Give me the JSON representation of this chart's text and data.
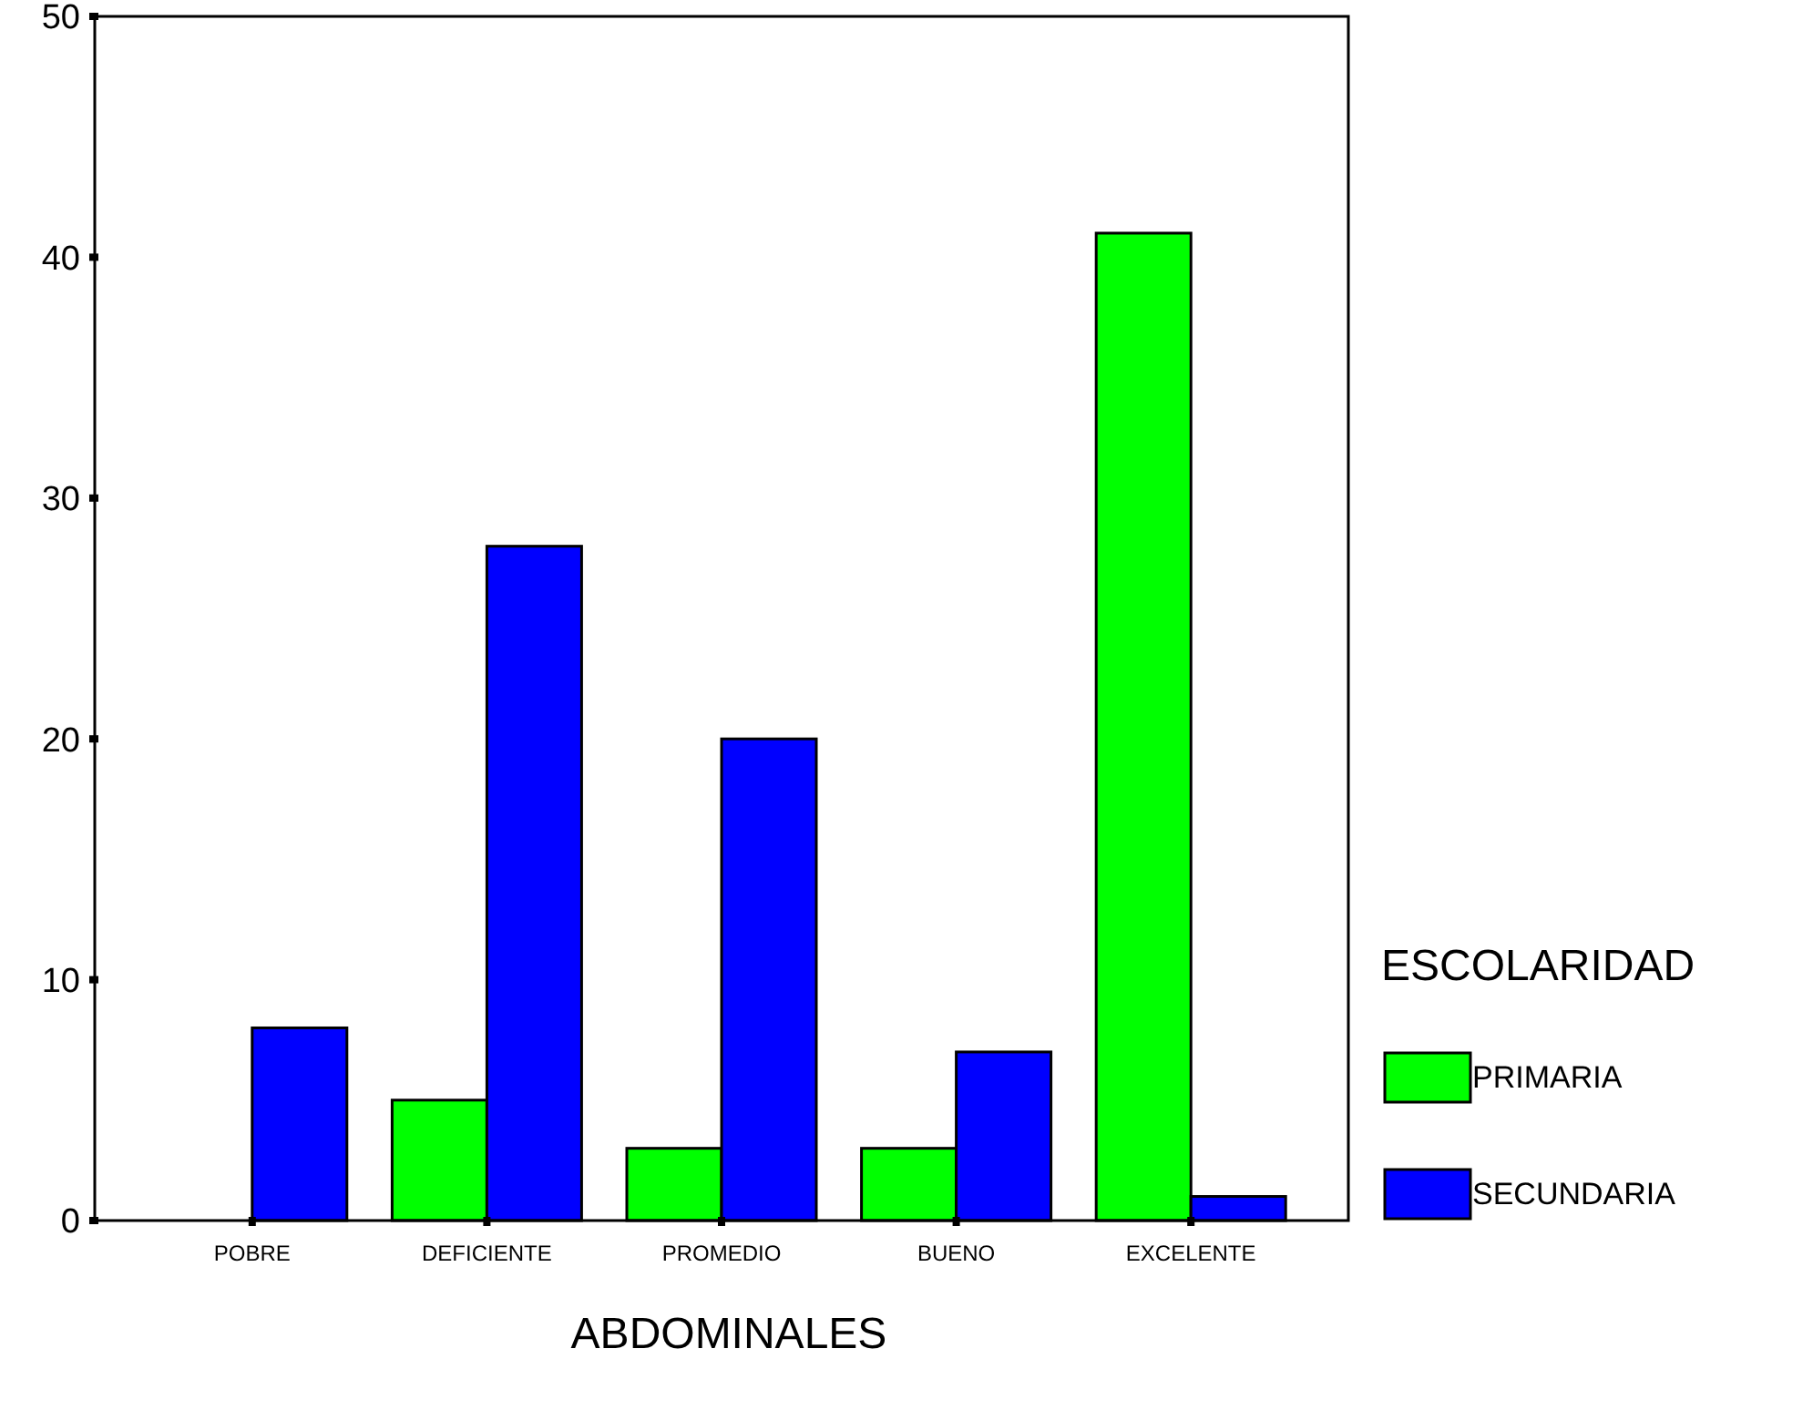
{
  "chart_data": {
    "type": "bar",
    "xlabel": "ABDOMINALES",
    "legend_title": "ESCOLARIDAD",
    "legend": "right",
    "grid": false,
    "categories": [
      "POBRE",
      "DEFICIENTE",
      "PROMEDIO",
      "BUENO",
      "EXCELENTE"
    ],
    "series": [
      {
        "name": "PRIMARIA",
        "color": "#00ff00",
        "values": [
          0,
          5,
          3,
          3,
          41
        ]
      },
      {
        "name": "SECUNDARIA",
        "color": "#0000ff",
        "values": [
          8,
          28,
          20,
          7,
          1
        ]
      }
    ],
    "ylim": [
      0,
      50
    ],
    "yticks": [
      0,
      10,
      20,
      30,
      40,
      50
    ]
  }
}
